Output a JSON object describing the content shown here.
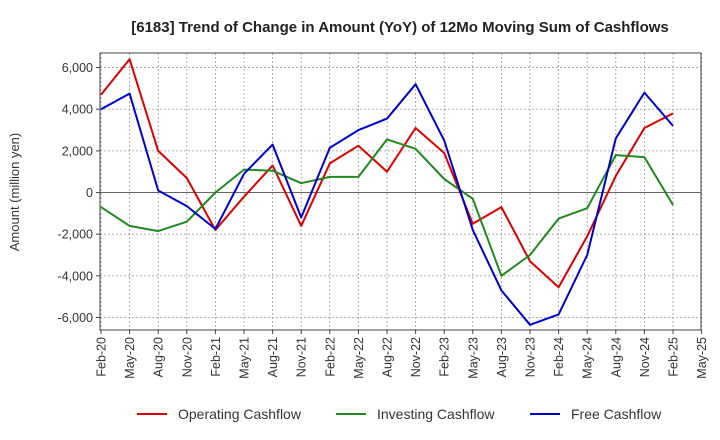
{
  "chart_data": {
    "type": "line",
    "title": "[6183]  Trend of Change in Amount (YoY) of 12Mo Moving Sum of Cashflows",
    "xlabel": "",
    "ylabel": "Amount (million yen)",
    "categories": [
      "Feb-20",
      "May-20",
      "Aug-20",
      "Nov-20",
      "Feb-21",
      "May-21",
      "Aug-21",
      "Nov-21",
      "Feb-22",
      "May-22",
      "Aug-22",
      "Nov-22",
      "Feb-23",
      "May-23",
      "Aug-23",
      "Nov-23",
      "Feb-24",
      "May-24",
      "Aug-24",
      "Nov-24",
      "Feb-25",
      "May-25"
    ],
    "yticks": [
      -6000,
      -4000,
      -2000,
      0,
      2000,
      4000,
      6000
    ],
    "ytick_labels": [
      "-6,000",
      "-4,000",
      "-2,000",
      "0",
      "2,000",
      "4,000",
      "6,000"
    ],
    "ylim": [
      -6600,
      6700
    ],
    "grid": true,
    "legend_position": "bottom",
    "series": [
      {
        "name": "Operating Cashflow",
        "color": "#dd0000",
        "values": [
          4700,
          6400,
          2000,
          700,
          -1800,
          -200,
          1300,
          -1600,
          1400,
          2250,
          1000,
          3100,
          1900,
          -1500,
          -700,
          -3300,
          -4550,
          -2100,
          800,
          3100,
          3800,
          null
        ]
      },
      {
        "name": "Investing Cashflow",
        "color": "#228822",
        "values": [
          -700,
          -1600,
          -1850,
          -1400,
          0,
          1100,
          1050,
          450,
          750,
          750,
          2550,
          2100,
          650,
          -300,
          -4000,
          -3000,
          -1250,
          -750,
          1800,
          1700,
          -600,
          null
        ]
      },
      {
        "name": "Free Cashflow",
        "color": "#0000cc",
        "values": [
          4000,
          4750,
          100,
          -650,
          -1750,
          900,
          2300,
          -1200,
          2150,
          3000,
          3550,
          5200,
          2500,
          -1800,
          -4700,
          -6350,
          -5850,
          -3000,
          2600,
          4800,
          3200,
          null
        ]
      }
    ]
  }
}
